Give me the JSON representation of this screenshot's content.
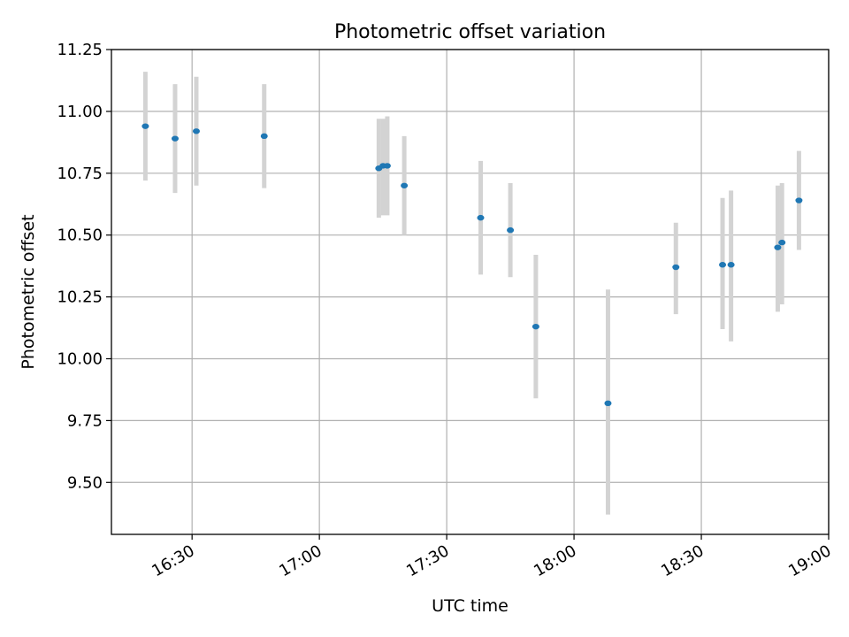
{
  "chart_data": {
    "type": "scatter",
    "title": "Photometric offset variation",
    "xlabel": "UTC time",
    "ylabel": "Photometric offset",
    "grid": true,
    "xlim": [
      "16:11",
      "19:00"
    ],
    "ylim": [
      9.29,
      11.25
    ],
    "xticks": [
      "16:30",
      "17:00",
      "17:30",
      "18:00",
      "18:30",
      "19:00"
    ],
    "yticks": [
      "9.50",
      "9.75",
      "10.00",
      "10.25",
      "10.50",
      "10.75",
      "11.00",
      "11.25"
    ],
    "series": [
      {
        "marker_color": "#1f77b4",
        "errorbar_color": "#d3d3d3",
        "points": [
          {
            "x": "16:19",
            "y": 10.94,
            "low": 10.72,
            "high": 11.16
          },
          {
            "x": "16:26",
            "y": 10.89,
            "low": 10.67,
            "high": 11.11
          },
          {
            "x": "16:31",
            "y": 10.92,
            "low": 10.7,
            "high": 11.14
          },
          {
            "x": "16:47",
            "y": 10.9,
            "low": 10.69,
            "high": 11.11
          },
          {
            "x": "17:14",
            "y": 10.77,
            "low": 10.57,
            "high": 10.97
          },
          {
            "x": "17:15",
            "y": 10.78,
            "low": 10.58,
            "high": 10.97
          },
          {
            "x": "17:16",
            "y": 10.78,
            "low": 10.58,
            "high": 10.98
          },
          {
            "x": "17:20",
            "y": 10.7,
            "low": 10.5,
            "high": 10.9
          },
          {
            "x": "17:38",
            "y": 10.57,
            "low": 10.34,
            "high": 10.8
          },
          {
            "x": "17:45",
            "y": 10.52,
            "low": 10.33,
            "high": 10.71
          },
          {
            "x": "17:51",
            "y": 10.13,
            "low": 9.84,
            "high": 10.42
          },
          {
            "x": "18:08",
            "y": 9.82,
            "low": 9.37,
            "high": 10.28
          },
          {
            "x": "18:24",
            "y": 10.37,
            "low": 10.18,
            "high": 10.55
          },
          {
            "x": "18:35",
            "y": 10.38,
            "low": 10.12,
            "high": 10.65
          },
          {
            "x": "18:37",
            "y": 10.38,
            "low": 10.07,
            "high": 10.68
          },
          {
            "x": "18:48",
            "y": 10.45,
            "low": 10.19,
            "high": 10.7
          },
          {
            "x": "18:49",
            "y": 10.47,
            "low": 10.22,
            "high": 10.71
          },
          {
            "x": "18:53",
            "y": 10.64,
            "low": 10.44,
            "high": 10.84
          }
        ]
      }
    ]
  }
}
